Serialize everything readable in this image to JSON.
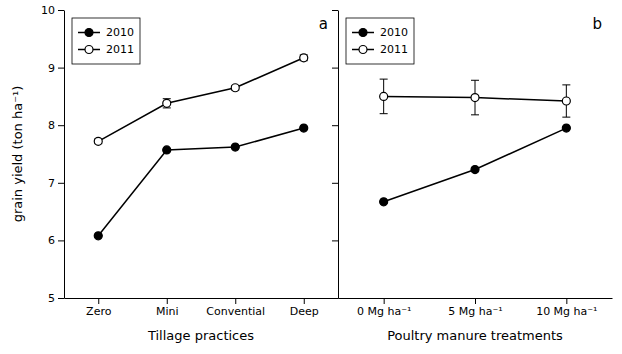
{
  "chart_data": [
    {
      "type": "line",
      "categories": [
        "Zero",
        "Mini",
        "Convential",
        "Deep"
      ],
      "xlabel": "Tillage practices",
      "ylabel": "grain yield (ton ha⁻¹)",
      "ylim": [
        5,
        10
      ],
      "yticks": [
        5,
        6,
        7,
        8,
        9,
        10
      ],
      "series": [
        {
          "name": "2010",
          "color": "#000000",
          "marker": "filled-circle",
          "values": [
            6.08,
            7.57,
            7.62,
            7.95
          ],
          "errors": [
            0.0,
            0.0,
            0.0,
            0.0
          ]
        },
        {
          "name": "2011",
          "color": "#000000",
          "marker": "open-circle",
          "values": [
            7.72,
            8.38,
            8.65,
            9.17
          ],
          "errors": [
            0.04,
            0.08,
            0.04,
            0.05
          ]
        }
      ],
      "annotations": [
        "a"
      ],
      "legend": "upper left",
      "grid": false
    },
    {
      "type": "line",
      "categories": [
        "0 Mg ha⁻¹",
        "5 Mg ha⁻¹",
        "10 Mg ha⁻¹"
      ],
      "xlabel": "Poultry manure treatments",
      "ylim": [
        5,
        10
      ],
      "yticks": [
        5,
        6,
        7,
        8,
        9,
        10
      ],
      "series": [
        {
          "name": "2010",
          "color": "#000000",
          "marker": "filled-circle",
          "values": [
            6.67,
            7.23,
            7.95
          ],
          "errors": [
            0.0,
            0.0,
            0.0
          ]
        },
        {
          "name": "2011",
          "color": "#000000",
          "marker": "open-circle",
          "values": [
            8.5,
            8.48,
            8.42
          ],
          "errors": [
            0.3,
            0.3,
            0.28
          ]
        }
      ],
      "annotations": [
        "b"
      ],
      "legend": "upper left",
      "grid": false,
      "tick_labels": "x"
    }
  ]
}
